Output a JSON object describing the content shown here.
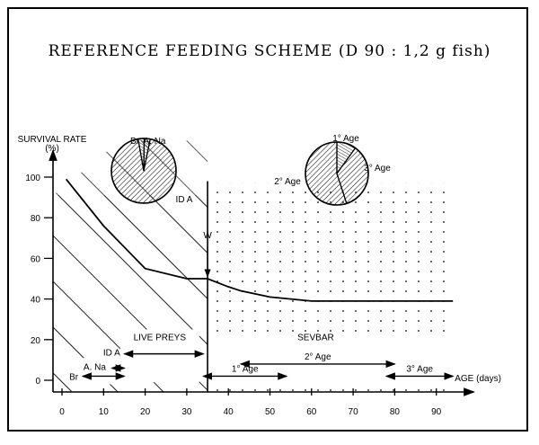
{
  "title": "REFERENCE FEEDING SCHEME (D 90 : 1,2 g fish)",
  "chart_data": {
    "type": "line",
    "title": "REFERENCE FEEDING SCHEME (D 90 : 1,2 g fish)",
    "ylabel": "SURVIVAL RATE",
    "ylabel_unit": "(%)",
    "xlabel": "AGE (days)",
    "xlim": [
      -2,
      96
    ],
    "ylim": [
      -5,
      110
    ],
    "x_ticks": [
      0,
      10,
      20,
      30,
      40,
      50,
      60,
      70,
      80,
      90
    ],
    "y_ticks": [
      0,
      20,
      40,
      60,
      80,
      100
    ],
    "series": [
      {
        "name": "survival",
        "x": [
          1,
          10,
          20,
          30,
          35,
          40,
          43,
          50,
          60,
          94
        ],
        "y": [
          99,
          76,
          55,
          50,
          50,
          46,
          44,
          41,
          39,
          39
        ]
      }
    ],
    "regions": [
      {
        "label": "LIVE PREYS",
        "from": 0,
        "to": 35,
        "pattern": "hatch"
      },
      {
        "label": "SEVBAR",
        "from": 35,
        "to": 94,
        "pattern": "dots"
      }
    ],
    "weaning_marker": {
      "label": "W",
      "x": 35
    },
    "arrows": [
      {
        "label": "Br",
        "from": 5,
        "to": 15,
        "y": 2
      },
      {
        "label": "A. Na",
        "from": 12,
        "to": 15,
        "y": 6
      },
      {
        "label": "ID A",
        "from": 15,
        "to": 34,
        "y": 13
      },
      {
        "label": "1° Age",
        "from": 34,
        "to": 54,
        "y": 2
      },
      {
        "label": "2° Age",
        "from": 43,
        "to": 80,
        "y": 8
      },
      {
        "label": "3° Age",
        "from": 78,
        "to": 94,
        "y": 2
      }
    ],
    "pies": [
      {
        "slices": [
          {
            "label": "Br",
            "value": 3
          },
          {
            "label": "A. Na",
            "value": 3
          },
          {
            "label": "ID A",
            "value": 94
          }
        ]
      },
      {
        "slices": [
          {
            "label": "1° Age",
            "value": 10
          },
          {
            "label": "3° Age",
            "value": 35
          },
          {
            "label": "2° Age",
            "value": 55
          }
        ]
      }
    ]
  }
}
